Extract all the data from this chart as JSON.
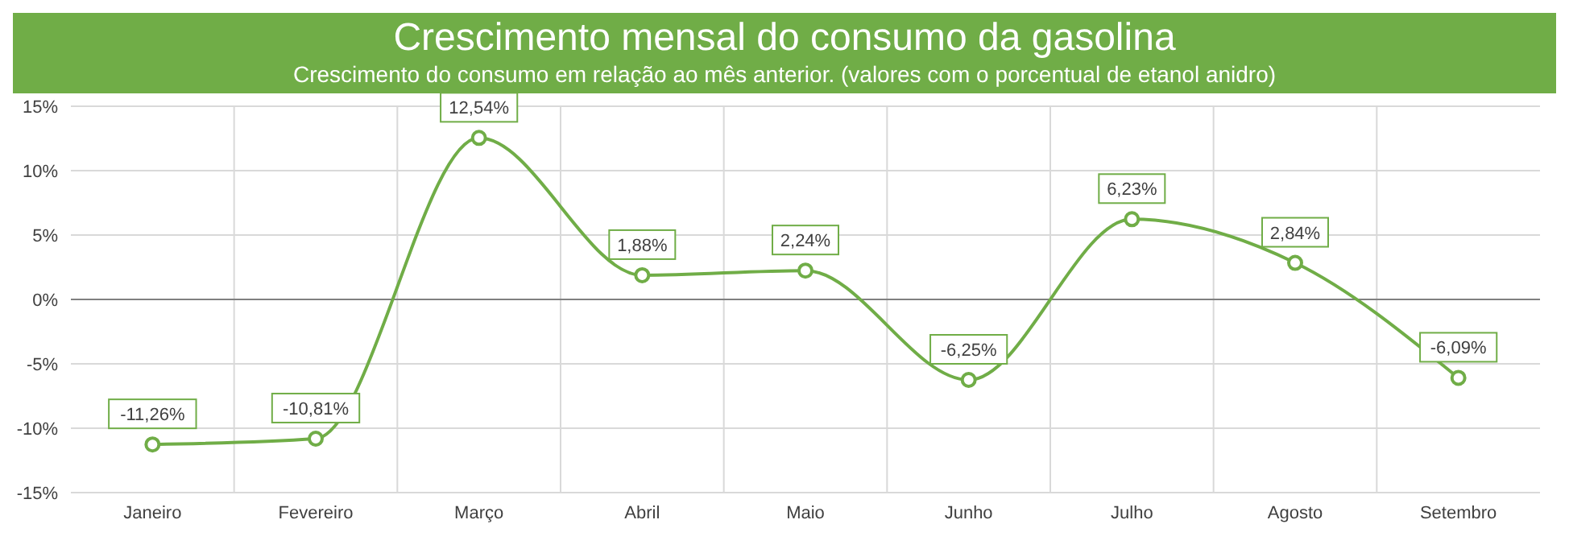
{
  "chart_data": {
    "type": "line",
    "title": "Crescimento mensal do consumo da gasolina",
    "subtitle": "Crescimento do consumo em relação ao mês anterior. (valores com o porcentual de etanol anidro)",
    "categories": [
      "Janeiro",
      "Fevereiro",
      "Março",
      "Abril",
      "Maio",
      "Junho",
      "Julho",
      "Agosto",
      "Setembro"
    ],
    "series": [
      {
        "color": "#70ad47",
        "values": [
          -11.26,
          -10.81,
          12.54,
          1.88,
          2.24,
          -6.25,
          6.23,
          2.84,
          -6.09
        ],
        "value_labels": [
          "-11,26%",
          "-10,81%",
          "12,54%",
          "1,88%",
          "2,24%",
          "-6,25%",
          "6,23%",
          "2,84%",
          "-6,09%"
        ]
      }
    ],
    "ylim": [
      -15,
      15
    ],
    "yticks": [
      {
        "value": -15,
        "label": "-15%"
      },
      {
        "value": -10,
        "label": "-10%"
      },
      {
        "value": -5,
        "label": "-5%"
      },
      {
        "value": 0,
        "label": "0%"
      },
      {
        "value": 5,
        "label": "5%"
      },
      {
        "value": 10,
        "label": "10%"
      },
      {
        "value": 15,
        "label": "15%"
      }
    ],
    "ref_lines": [
      {
        "axis": "y",
        "value": 0,
        "color": "#808080"
      }
    ],
    "grid": true,
    "marker": "circle",
    "line_style": "solid"
  }
}
